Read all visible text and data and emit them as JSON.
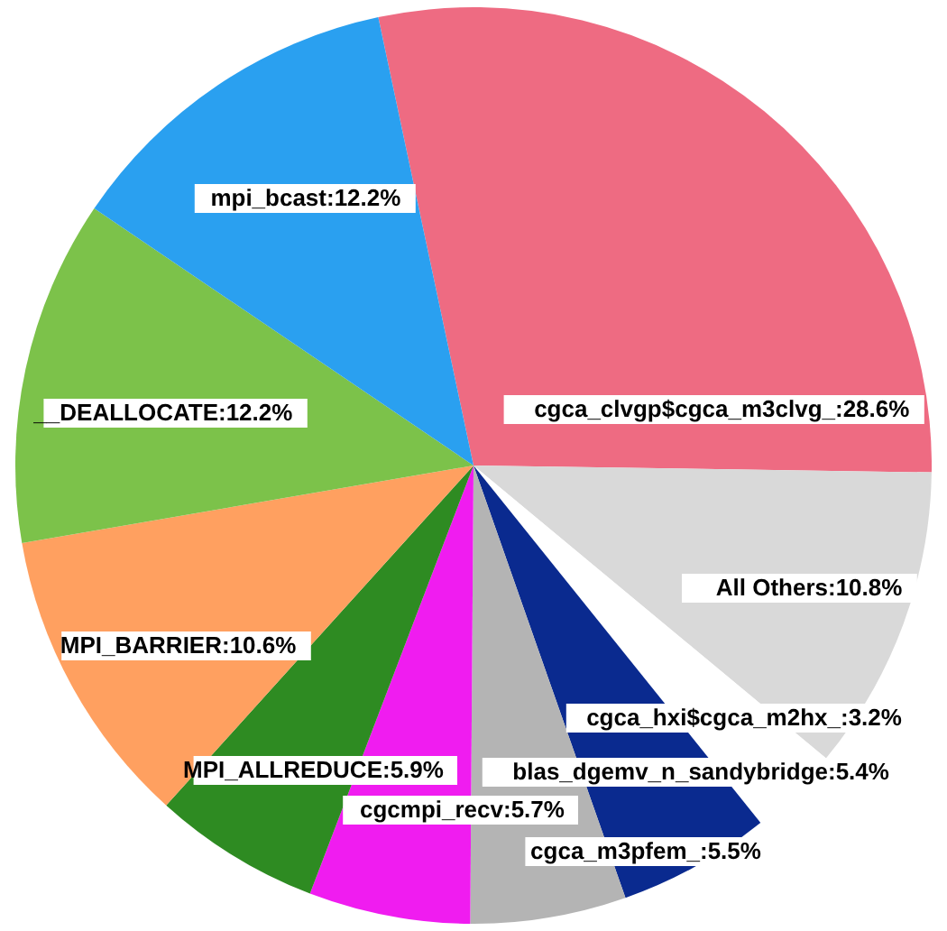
{
  "chart_data": {
    "type": "pie",
    "categories": [
      "cgca_clvgp$cgca_m3clvg_",
      "All Others",
      "cgca_hxi$cgca_m2hx_",
      "blas_dgemv_n_sandybridge",
      "cgca_m3pfem_",
      "cgcmpi_recv",
      "MPI_ALLREDUCE",
      "MPI_BARRIER",
      "__DEALLOCATE",
      "mpi_bcast"
    ],
    "values": [
      28.6,
      10.8,
      3.2,
      5.4,
      5.5,
      5.7,
      5.9,
      10.6,
      12.2,
      12.2
    ],
    "colors": [
      "#ee6b82",
      "#d9d9d9",
      "#ffffff",
      "#0a2a8f",
      "#b4b4b4",
      "#f01cf0",
      "#2e8b22",
      "#ffa060",
      "#7cc24a",
      "#2aa0f0"
    ],
    "value_labels": [
      ":28.6%",
      ":10.8%",
      ":3.2%",
      ":5.4%",
      ":5.5%",
      ":5.7%",
      ":5.9%",
      ":10.6%",
      ":12.2%",
      ":12.2%"
    ]
  }
}
